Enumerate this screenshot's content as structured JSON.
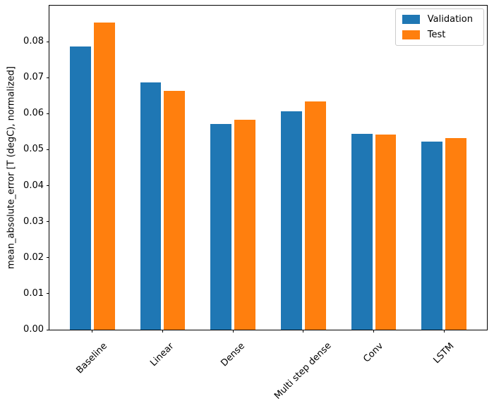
{
  "chart_data": {
    "type": "bar",
    "title": "",
    "xlabel": "",
    "ylabel": "mean_absolute_error [T (degC), normalized]",
    "categories": [
      "Baseline",
      "Linear",
      "Dense",
      "Multi step dense",
      "Conv",
      "LSTM"
    ],
    "series": [
      {
        "name": "Validation",
        "color": "#1f77b4",
        "values": [
          0.0786,
          0.0687,
          0.0571,
          0.0607,
          0.0544,
          0.0522
        ]
      },
      {
        "name": "Test",
        "color": "#ff7f0e",
        "values": [
          0.0853,
          0.0663,
          0.0583,
          0.0634,
          0.0542,
          0.0532
        ]
      }
    ],
    "yticks": [
      "0.00",
      "0.01",
      "0.02",
      "0.03",
      "0.04",
      "0.05",
      "0.06",
      "0.07",
      "0.08"
    ],
    "ylim": [
      0,
      0.09
    ],
    "xlim": [
      -0.61,
      5.61
    ],
    "bar_width": 0.3,
    "bar_offsets": [
      -0.17,
      0.17
    ],
    "grid": false,
    "legend_position": "upper right",
    "x_tick_rotation": 45,
    "axis_color": "#000000",
    "legend_border_color": "#cccccc"
  }
}
